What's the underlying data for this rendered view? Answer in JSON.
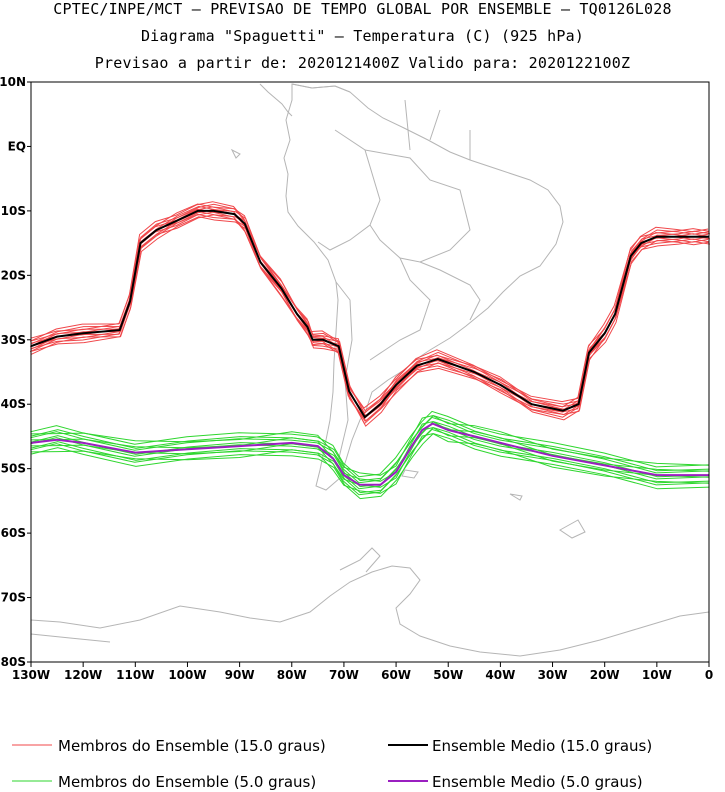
{
  "title_line1": "CPTEC/INPE/MCT — PREVISAO DE TEMPO GLOBAL POR ENSEMBLE — TQ0126L028",
  "title_line2": "Diagrama \"Spaguetti\" — Temperatura (C) (925 hPa)",
  "title_line3": "Previsao a partir de: 2020121400Z  Valido para: 2020122100Z",
  "colors": {
    "member15": "#f0474a",
    "mean15": "#000000",
    "member5": "#2ed62e",
    "mean5": "#9a1fc0",
    "coast": "#b5b5b5"
  },
  "chart_data": {
    "type": "line",
    "title": "Diagrama \"Spaguetti\" — Temperatura (C) (925 hPa)",
    "xlim": [
      -130,
      0
    ],
    "ylim": [
      -80,
      10
    ],
    "x_ticks": [
      "130W",
      "120W",
      "110W",
      "100W",
      "90W",
      "80W",
      "70W",
      "60W",
      "50W",
      "40W",
      "30W",
      "20W",
      "10W",
      "0"
    ],
    "y_ticks": [
      "10N",
      "EQ",
      "10S",
      "20S",
      "30S",
      "40S",
      "50S",
      "60S",
      "70S",
      "80S"
    ],
    "series": [
      {
        "name": "Ensemble Medio (15.0 graus)",
        "lon": [
          -130,
          -125,
          -120,
          -113,
          -111,
          -109,
          -106,
          -102,
          -98,
          -95,
          -91,
          -89,
          -86,
          -82,
          -79,
          -77,
          -76,
          -74,
          -71,
          -69,
          -66,
          -63,
          -60,
          -56,
          -52,
          -45,
          -40,
          -34,
          -28,
          -25,
          -23,
          -20,
          -18,
          -15,
          -13,
          -10,
          -6,
          -3,
          0
        ],
        "lat": [
          -31,
          -29.5,
          -29,
          -28.5,
          -24,
          -15,
          -13,
          -11.5,
          -10,
          -10,
          -10.5,
          -12,
          -18,
          -22,
          -26,
          -28,
          -30,
          -30,
          -31,
          -38,
          -42,
          -40,
          -37,
          -34,
          -33,
          -35,
          -37,
          -40,
          -41,
          -40,
          -32,
          -29,
          -26,
          -17,
          -15,
          -14,
          -14,
          -14,
          -14
        ]
      },
      {
        "name": "Ensemble Medio (5.0 graus)",
        "lon": [
          -130,
          -125,
          -120,
          -110,
          -100,
          -90,
          -80,
          -75,
          -72,
          -70,
          -67,
          -63,
          -60,
          -57,
          -55,
          -53,
          -50,
          -45,
          -40,
          -30,
          -20,
          -10,
          0
        ],
        "lat": [
          -46,
          -45.5,
          -46,
          -47.5,
          -47,
          -46.5,
          -46,
          -46.5,
          -48.5,
          -51,
          -52.5,
          -52.5,
          -50.5,
          -46.5,
          -44,
          -43,
          -44,
          -45,
          -46,
          -48,
          -49.5,
          -51,
          -51
        ]
      }
    ],
    "legend": [
      {
        "label": "Membros do Ensemble (15.0 graus)",
        "color": "#f0474a"
      },
      {
        "label": "Ensemble Medio (15.0 graus)",
        "color": "#000000"
      },
      {
        "label": "Membros do Ensemble (5.0 graus)",
        "color": "#2ed62e"
      },
      {
        "label": "Ensemble Medio (5.0 graus)",
        "color": "#9a1fc0"
      }
    ]
  }
}
